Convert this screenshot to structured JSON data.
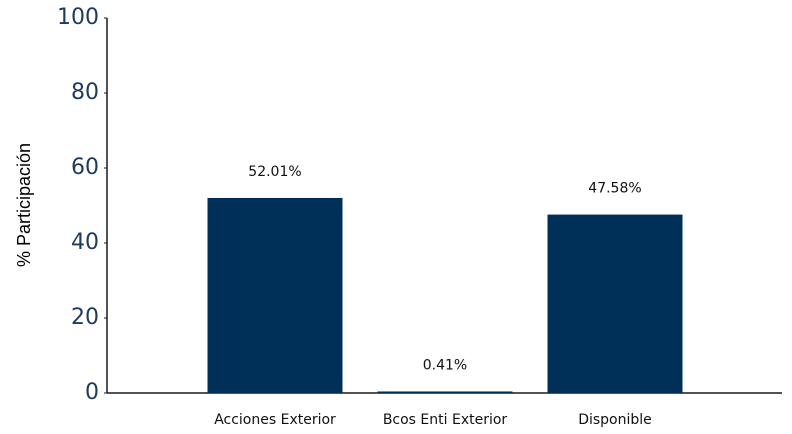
{
  "chart_data": {
    "type": "bar",
    "y_label": "% Participación",
    "categories": [
      "Acciones Exterior",
      "Bcos Enti Exterior",
      "Disponible"
    ],
    "values": [
      52.01,
      0.41,
      47.58
    ],
    "value_labels": [
      "52.01%",
      "0.41%",
      "47.58%"
    ],
    "color": "#003057",
    "ylim": [
      0,
      100
    ],
    "yticks": [
      0,
      20,
      40,
      60,
      80,
      100
    ],
    "grid": false
  }
}
